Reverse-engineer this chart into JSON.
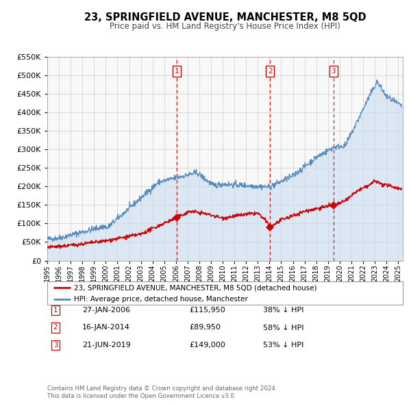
{
  "title": "23, SPRINGFIELD AVENUE, MANCHESTER, M8 5QD",
  "subtitle": "Price paid vs. HM Land Registry's House Price Index (HPI)",
  "legend_red": "23, SPRINGFIELD AVENUE, MANCHESTER, M8 5QD (detached house)",
  "legend_blue": "HPI: Average price, detached house, Manchester",
  "footer1": "Contains HM Land Registry data © Crown copyright and database right 2024.",
  "footer2": "This data is licensed under the Open Government Licence v3.0.",
  "transactions": [
    {
      "num": 1,
      "date": "27-JAN-2006",
      "price": 115950,
      "price_str": "£115,950",
      "pct": "38%",
      "dir": "↓",
      "x_year": 2006.07
    },
    {
      "num": 2,
      "date": "16-JAN-2014",
      "price": 89950,
      "price_str": "£89,950",
      "pct": "58%",
      "dir": "↓",
      "x_year": 2014.05
    },
    {
      "num": 3,
      "date": "21-JUN-2019",
      "price": 149000,
      "price_str": "£149,000",
      "pct": "53%",
      "dir": "↓",
      "x_year": 2019.47
    }
  ],
  "red_line_color": "#cc0000",
  "blue_line_color": "#5588bb",
  "blue_fill_color": "#c8ddf0",
  "vline_color": "#cc0000",
  "grid_color": "#cccccc",
  "plot_bg": "#f8f8f8",
  "ylim": [
    0,
    550000
  ],
  "xlim_start": 1995.0,
  "xlim_end": 2025.4
}
